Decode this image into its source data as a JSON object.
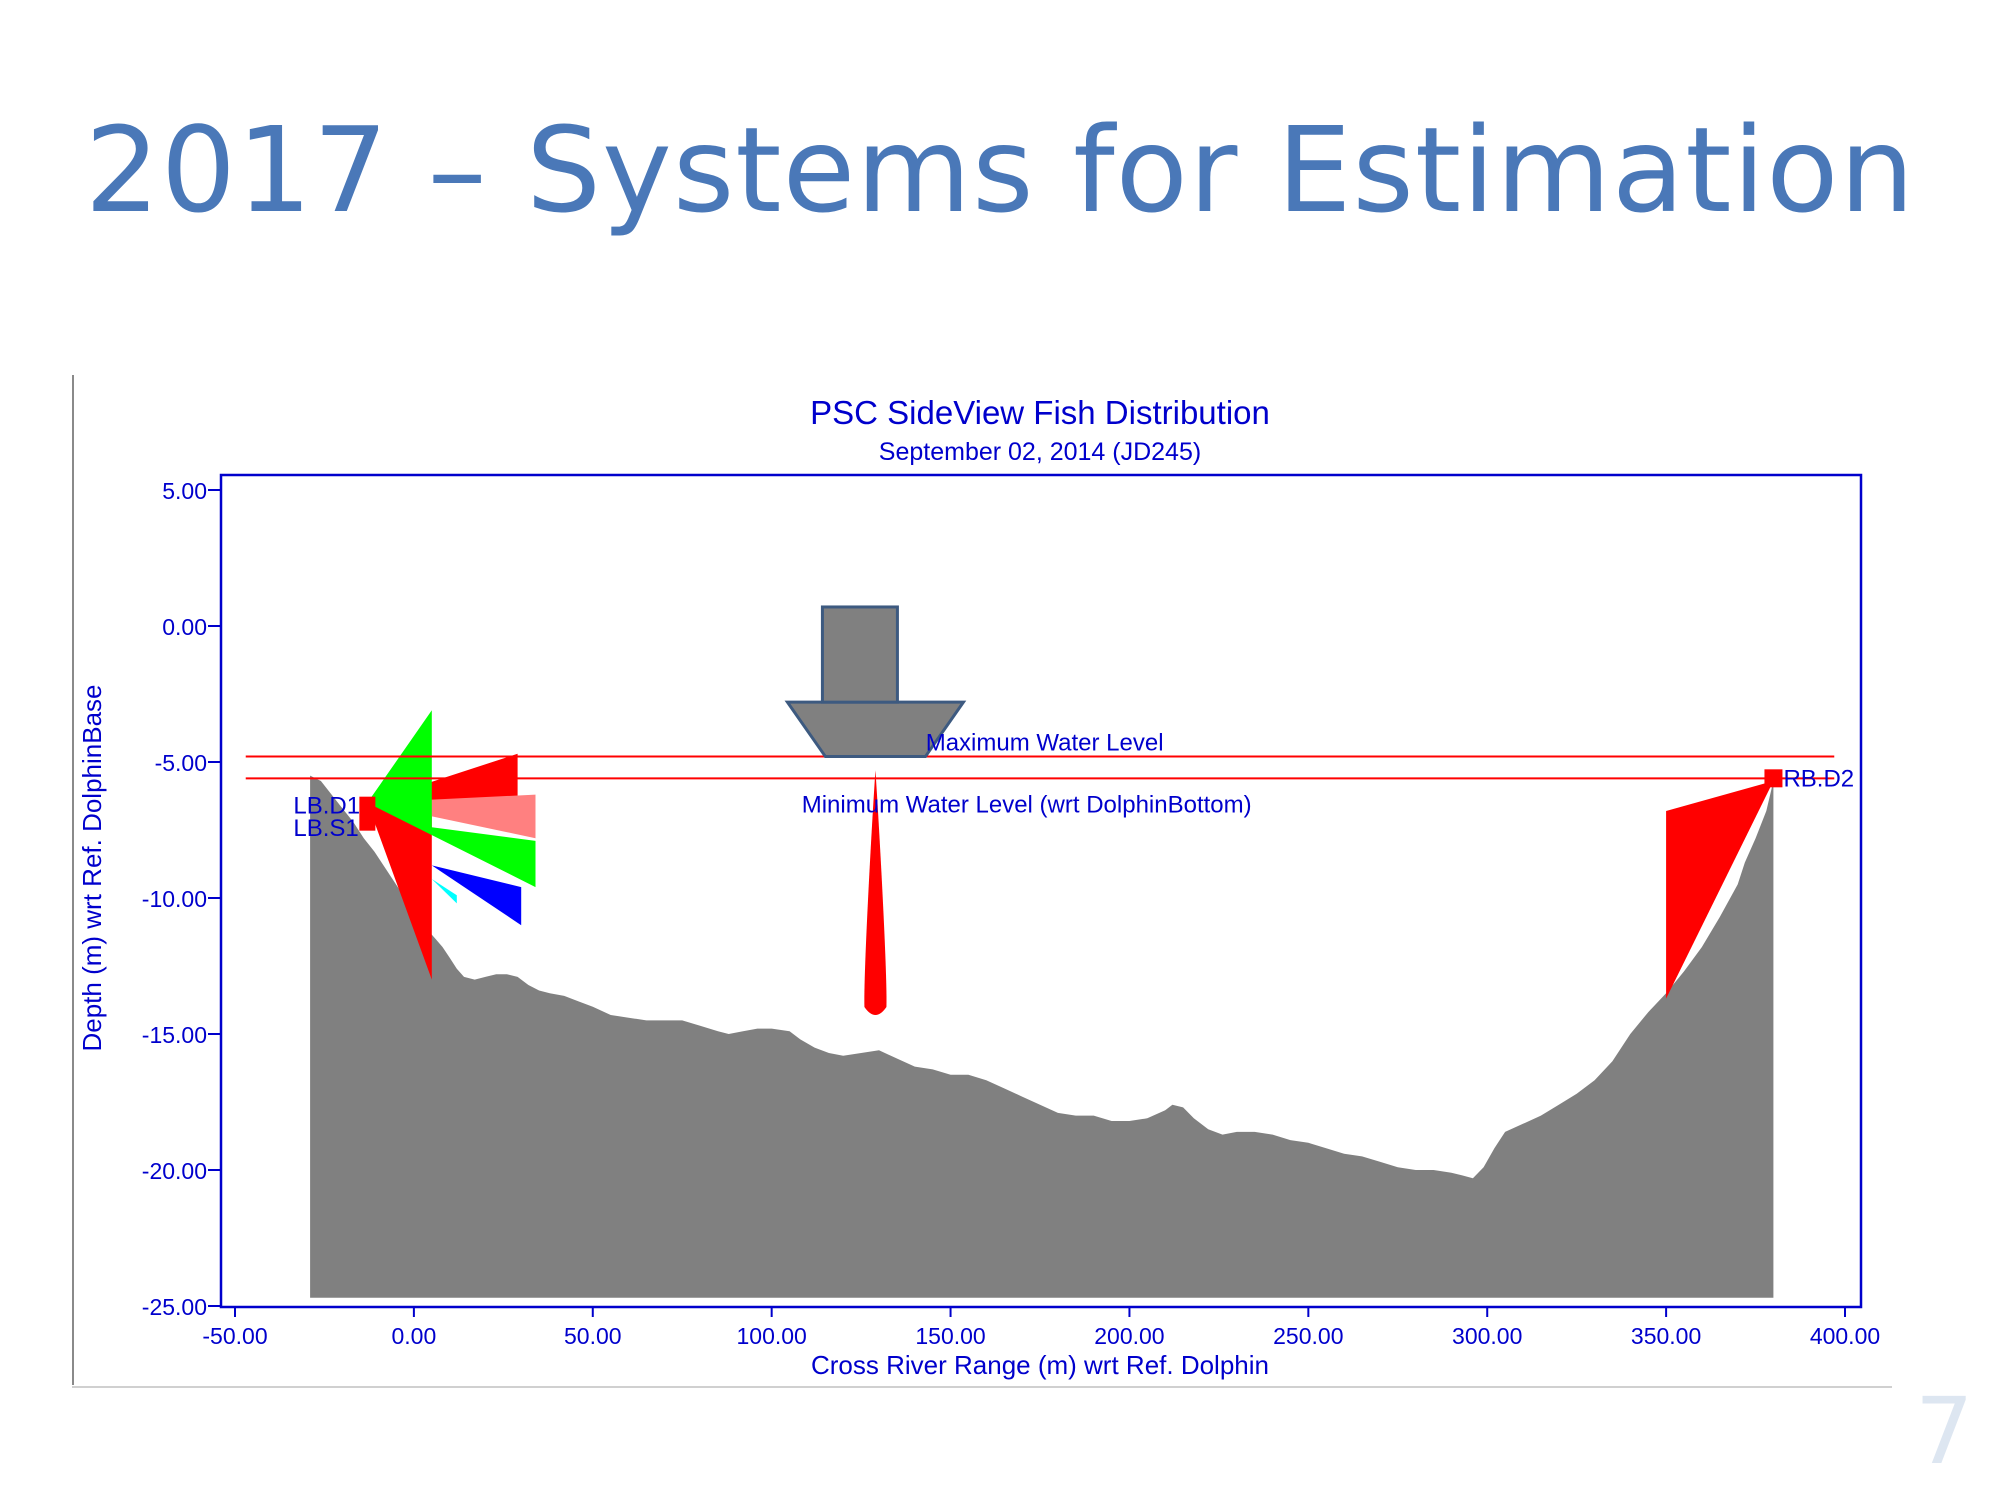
{
  "slide": {
    "title": "2017 – Systems for Estimation",
    "page_number": "7"
  },
  "chart_data": {
    "type": "area",
    "title": "PSC SideView Fish Distribution",
    "subtitle": "September 02, 2014 (JD245)",
    "xlabel": "Cross River Range (m) wrt Ref. Dolphin",
    "ylabel": "Depth (m) wrt Ref. DolphinBase",
    "xlim": [
      -50,
      400
    ],
    "ylim": [
      -25,
      5
    ],
    "x_ticks": [
      -50,
      0,
      50,
      100,
      150,
      200,
      250,
      300,
      350,
      400
    ],
    "x_tick_labels": [
      "-50.00",
      "0.00",
      "50.00",
      "100.00",
      "150.00",
      "200.00",
      "250.00",
      "300.00",
      "350.00",
      "400.00"
    ],
    "y_ticks": [
      5,
      0,
      -5,
      -10,
      -15,
      -20,
      -25
    ],
    "y_tick_labels": [
      "5.00",
      "0.00",
      "-5.00",
      "-10.00",
      "-15.00",
      "-20.00",
      "-25.00"
    ],
    "grid": false,
    "colors": {
      "axes": "#0000cc",
      "text": "#0000cc",
      "riverbed": "#808080",
      "water_level": "#ff0000",
      "boat_fill": "#808080",
      "boat_stroke": "#3d5a80"
    },
    "riverbed_profile": {
      "x": [
        -29,
        -26,
        -23,
        -20,
        -17,
        -14,
        -11,
        -8,
        -5,
        -2,
        1,
        4,
        6,
        8,
        10,
        12,
        14,
        17,
        20,
        23,
        26,
        29,
        32,
        35,
        38,
        42,
        46,
        50,
        55,
        60,
        65,
        70,
        75,
        80,
        85,
        88,
        92,
        96,
        100,
        105,
        108,
        112,
        116,
        120,
        125,
        130,
        135,
        140,
        145,
        150,
        155,
        160,
        165,
        170,
        175,
        180,
        185,
        190,
        195,
        200,
        205,
        210,
        212,
        215,
        218,
        222,
        226,
        230,
        235,
        240,
        245,
        250,
        255,
        260,
        265,
        270,
        275,
        280,
        285,
        290,
        293,
        296,
        299,
        302,
        305,
        310,
        315,
        320,
        325,
        330,
        335,
        340,
        345,
        350,
        355,
        360,
        365,
        370,
        372,
        375,
        378,
        380
      ],
      "y": [
        -5.5,
        -5.7,
        -6.2,
        -6.7,
        -7.2,
        -7.8,
        -8.3,
        -8.9,
        -9.5,
        -10.1,
        -10.7,
        -11.2,
        -11.5,
        -11.8,
        -12.2,
        -12.6,
        -12.9,
        -13.0,
        -12.9,
        -12.8,
        -12.8,
        -12.9,
        -13.2,
        -13.4,
        -13.5,
        -13.6,
        -13.8,
        -14.0,
        -14.3,
        -14.4,
        -14.5,
        -14.5,
        -14.5,
        -14.7,
        -14.9,
        -15.0,
        -14.9,
        -14.8,
        -14.8,
        -14.9,
        -15.2,
        -15.5,
        -15.7,
        -15.8,
        -15.7,
        -15.6,
        -15.9,
        -16.2,
        -16.3,
        -16.5,
        -16.5,
        -16.7,
        -17.0,
        -17.3,
        -17.6,
        -17.9,
        -18.0,
        -18.0,
        -18.2,
        -18.2,
        -18.1,
        -17.8,
        -17.6,
        -17.7,
        -18.1,
        -18.5,
        -18.7,
        -18.6,
        -18.6,
        -18.7,
        -18.9,
        -19.0,
        -19.2,
        -19.4,
        -19.5,
        -19.7,
        -19.9,
        -20.0,
        -20.0,
        -20.1,
        -20.2,
        -20.3,
        -19.9,
        -19.2,
        -18.6,
        -18.3,
        -18.0,
        -17.6,
        -17.2,
        -16.7,
        -16.0,
        -15.0,
        -14.2,
        -13.5,
        -12.7,
        -11.8,
        -10.7,
        -9.5,
        -8.7,
        -7.8,
        -6.8,
        -5.7
      ]
    },
    "water_levels": [
      {
        "label": "Maximum Water Level",
        "y": -4.8,
        "x_range": [
          -47,
          397
        ]
      },
      {
        "label": "Minimum Water Level (wrt DolphinBottom)",
        "y": -5.6,
        "x_range": [
          -47,
          397
        ]
      }
    ],
    "stations": [
      {
        "label": "LB.D1",
        "x": -13,
        "y": -6.6
      },
      {
        "label": "LB.S1",
        "x": -13,
        "y": -7.2
      },
      {
        "label": "RB.D2",
        "x": 380,
        "y": -5.6
      }
    ],
    "sonar_beams": [
      {
        "series": "red",
        "color": "#ff0000",
        "polygon": [
          [
            -13,
            -6.5
          ],
          [
            29,
            -4.7
          ],
          [
            29,
            -6.3
          ],
          [
            5,
            -6.5
          ],
          [
            5,
            -13.0
          ]
        ]
      },
      {
        "series": "salmon",
        "color": "#ff8080",
        "polygon": [
          [
            -13,
            -6.5
          ],
          [
            34,
            -6.2
          ],
          [
            34,
            -7.8
          ]
        ]
      },
      {
        "series": "green",
        "color": "#00ff00",
        "polygon": [
          [
            -13,
            -6.5
          ],
          [
            5,
            -3.1
          ],
          [
            5,
            -7.4
          ],
          [
            34,
            -7.9
          ],
          [
            34,
            -9.6
          ]
        ]
      },
      {
        "series": "blue",
        "color": "#0000ff",
        "polygon": [
          [
            5,
            -8.8
          ],
          [
            30,
            -9.6
          ],
          [
            30,
            -11.0
          ]
        ]
      },
      {
        "series": "cyan",
        "color": "#00ffff",
        "polygon": [
          [
            5,
            -9.3
          ],
          [
            12,
            -9.9
          ],
          [
            12,
            -10.2
          ]
        ]
      },
      {
        "series": "red-right",
        "color": "#ff0000",
        "polygon": [
          [
            380,
            -5.7
          ],
          [
            350,
            -6.8
          ],
          [
            350,
            -13.7
          ]
        ]
      }
    ],
    "vessel": {
      "x_center": 129,
      "beam": {
        "color": "#ff0000",
        "x": 129,
        "top": -5.3,
        "bottom": -14.3
      }
    }
  }
}
